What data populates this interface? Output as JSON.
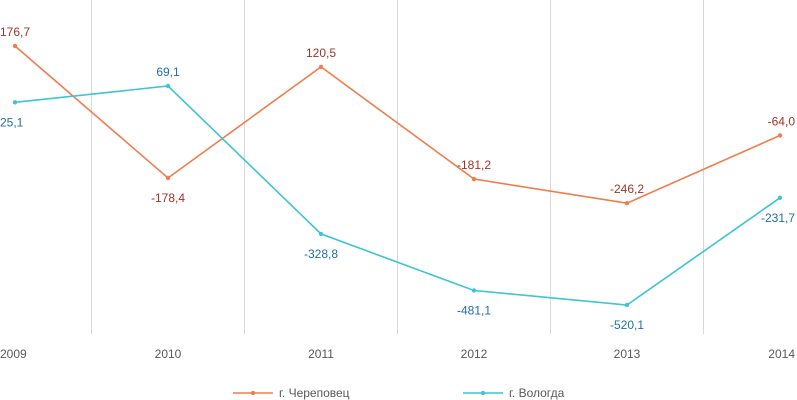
{
  "chart_data": {
    "type": "line",
    "title": "",
    "xlabel": "",
    "ylabel": "",
    "categories": [
      "2009",
      "2010",
      "2011",
      "2012",
      "2013",
      "2014"
    ],
    "ylim": [
      -620,
      220
    ],
    "grid": "vertical",
    "legend_position": "bottom",
    "series": [
      {
        "name": "г. Череповец",
        "color": "#F07D4B",
        "label_color": "#A0342A",
        "values": [
          176.7,
          -178.4,
          120.5,
          -181.2,
          -246.2,
          -64.0
        ],
        "labels": [
          "176,7",
          "-178,4",
          "120,5",
          "-181,2",
          "-246,2",
          "-64,0"
        ],
        "label_side": [
          "above",
          "below",
          "above",
          "above",
          "above",
          "above"
        ]
      },
      {
        "name": "г. Вологда",
        "color": "#3EC4D4",
        "label_color": "#1F6FA8",
        "values": [
          25.1,
          69.1,
          -328.8,
          -481.1,
          -520.1,
          -231.7
        ],
        "labels": [
          "25,1",
          "69,1",
          "-328,8",
          "-481,1",
          "-520,1",
          "-231,7"
        ],
        "label_side": [
          "below",
          "above",
          "below",
          "below",
          "below",
          "below"
        ]
      }
    ]
  }
}
